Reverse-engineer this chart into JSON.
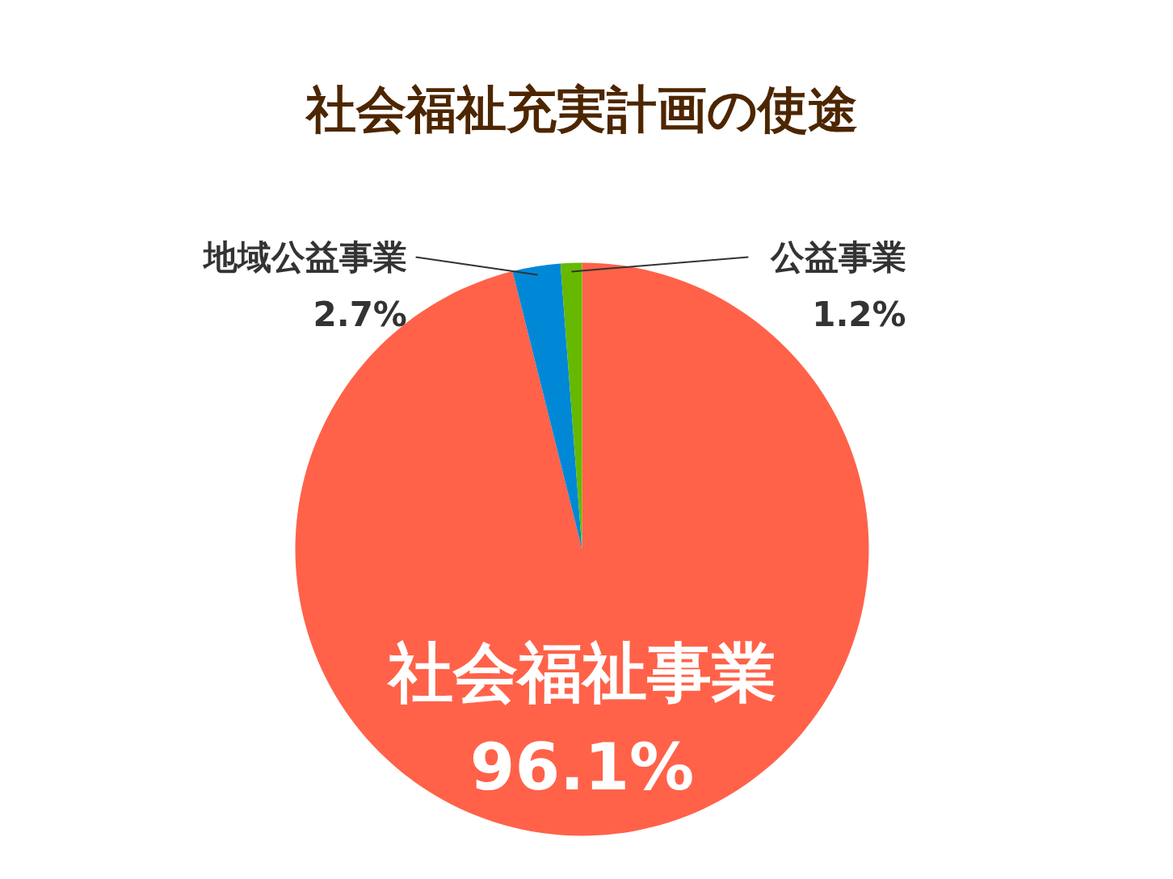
{
  "chart_data": {
    "type": "pie",
    "title": "社会福祉充実計画の使途",
    "categories": [
      "社会福祉事業",
      "地域公益事業",
      "公益事業"
    ],
    "values": [
      96.1,
      2.7,
      1.2
    ],
    "colors": [
      "#ff6249",
      "#0088d6",
      "#66b800"
    ],
    "value_labels": [
      "96.1%",
      "2.7%",
      "1.2%"
    ],
    "data_labels": true
  }
}
